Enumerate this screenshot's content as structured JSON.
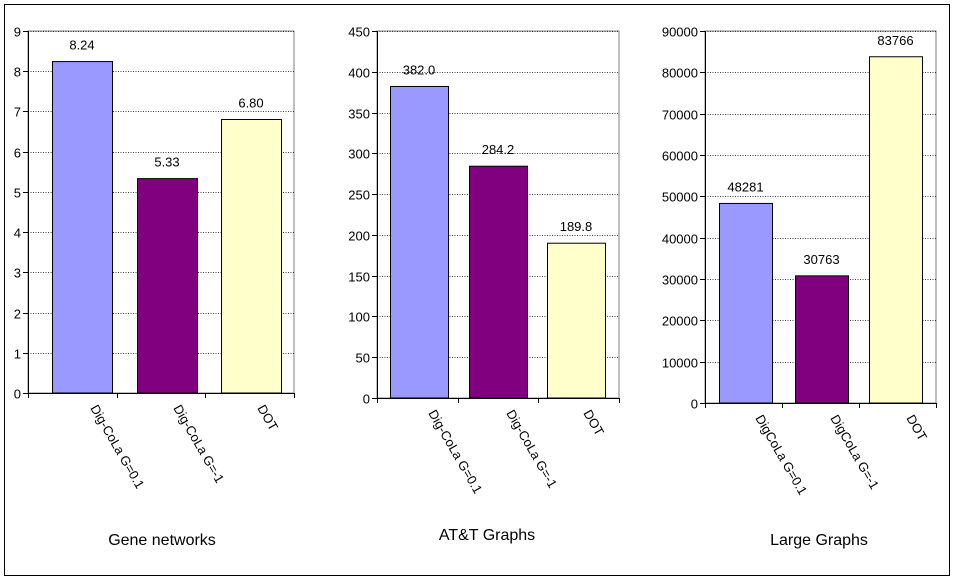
{
  "chart_data": [
    {
      "type": "bar",
      "title": "Gene networks",
      "categories": [
        "Dig-CoLa G=0.1",
        "Dig-CoLa G=-1",
        "DOT"
      ],
      "values": [
        8.24,
        5.33,
        6.8
      ],
      "value_labels": [
        "8.24",
        "5.33",
        "6.80"
      ],
      "yticks": [
        "0",
        "1",
        "2",
        "3",
        "4",
        "5",
        "6",
        "7",
        "8",
        "9"
      ],
      "ylim": [
        0,
        9
      ],
      "grid": "horizontal-dotted",
      "colors": [
        "#9999ff",
        "#800080",
        "#ffffcc"
      ]
    },
    {
      "type": "bar",
      "title": "AT&T Graphs",
      "categories": [
        "Dig-CoLa G=0.1",
        "Dig-CoLa G=-1",
        "DOT"
      ],
      "values": [
        382.0,
        284.2,
        189.8
      ],
      "value_labels": [
        "382.0",
        "284.2",
        "189.8"
      ],
      "yticks": [
        "0",
        "50",
        "100",
        "150",
        "200",
        "250",
        "300",
        "350",
        "400",
        "450"
      ],
      "ylim": [
        0,
        450
      ],
      "grid": "horizontal-dotted",
      "colors": [
        "#9999ff",
        "#800080",
        "#ffffcc"
      ]
    },
    {
      "type": "bar",
      "title": "Large Graphs",
      "categories": [
        "DigCoLa G=0.1",
        "DigCoLa G=-1",
        "DOT"
      ],
      "values": [
        48281,
        30763,
        83766
      ],
      "value_labels": [
        "48281",
        "30763",
        "83766"
      ],
      "yticks": [
        "0",
        "10000",
        "20000",
        "30000",
        "40000",
        "50000",
        "60000",
        "70000",
        "80000",
        "90000"
      ],
      "ylim": [
        0,
        90000
      ],
      "grid": "horizontal-dotted",
      "colors": [
        "#9999ff",
        "#800080",
        "#ffffcc"
      ]
    }
  ]
}
